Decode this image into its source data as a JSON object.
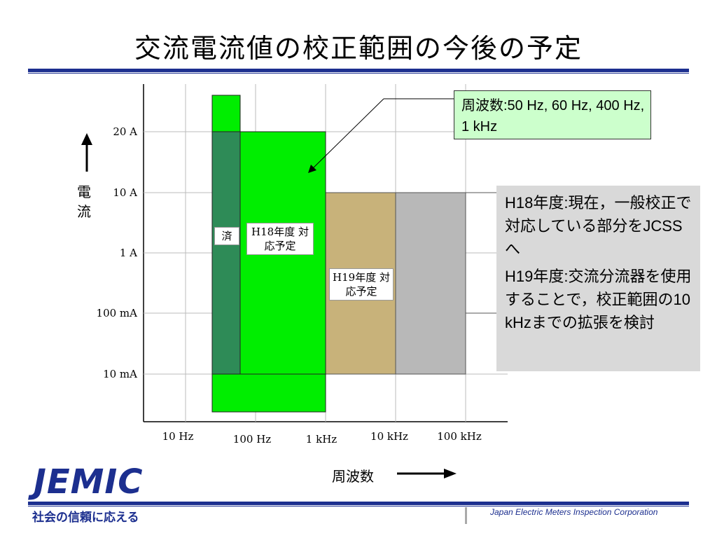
{
  "title": "交流電流値の校正範囲の今後の予定",
  "y_axis_title": "電流",
  "x_axis_title": "周波数",
  "y_ticks": [
    "20 A",
    "10 A",
    "1 A",
    "100 mA",
    "10 mA"
  ],
  "x_ticks": [
    "10 Hz",
    "100 Hz",
    "1 kHz",
    "10 kHz",
    "100 kHz"
  ],
  "callout_frequencies": "周波数:50 Hz, 60 Hz, 400 Hz, 1 kHz",
  "box_labels": {
    "done": "済",
    "h18": "H18年度 対応予定",
    "h19": "H19年度 対応予定"
  },
  "notes": [
    "H18年度:現在，一般校正で対応している部分をJCSSへ",
    "H19年度:交流分流器を使用することで，校正範囲の10 kHzまでの拡張を検討"
  ],
  "colors": {
    "done": "#2e8b57",
    "h18": "#00ee00",
    "h19": "#c8b27a",
    "future": "#b8b8b8",
    "brand": "#1c2f8f"
  },
  "footer": {
    "logo": "JEMIC",
    "slogan": "社会の信頼に応える",
    "organization": "Japan Electric Meters Inspection Corporation"
  }
}
